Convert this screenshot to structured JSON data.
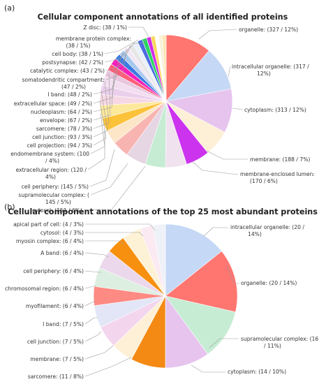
{
  "chart_data": [
    {
      "type": "pie",
      "panel_label": "(a)",
      "title": "Cellular component annotations of all identified proteins",
      "slices": [
        {
          "label": "organelle",
          "value": 327,
          "percent": 12,
          "color": "#ff7570"
        },
        {
          "label": "intracellular organelle",
          "value": 317,
          "percent": 12,
          "color": "#c5d8f5"
        },
        {
          "label": "cytoplasm",
          "value": 313,
          "percent": 12,
          "color": "#e6c4ee"
        },
        {
          "label": "membrane",
          "value": 188,
          "percent": 7,
          "color": "#fdf0d6"
        },
        {
          "label": "membrane-enclosed lumen",
          "value": 170,
          "percent": 6,
          "color": "#cc33ee"
        },
        {
          "label": "cytosol",
          "value": 151,
          "percent": 6,
          "color": "#f1e2ef"
        },
        {
          "label": "supramolecular complex",
          "value": 145,
          "percent": 5,
          "color": "#c6ecd3"
        },
        {
          "label": "cell periphery",
          "value": 145,
          "percent": 5,
          "color": "#e6d6e4"
        },
        {
          "label": "extracellular region",
          "value": 120,
          "percent": 4,
          "color": "#f8b4b1"
        },
        {
          "label": "endomembrane system",
          "value": 100,
          "percent": 4,
          "color": "#fde6c8"
        },
        {
          "label": "cell projection",
          "value": 94,
          "percent": 3,
          "color": "#fcc23a"
        },
        {
          "label": "cell junction",
          "value": 93,
          "percent": 3,
          "color": "#fde99c"
        },
        {
          "label": "sarcomere",
          "value": 78,
          "percent": 3,
          "color": "#f6d8e4"
        },
        {
          "label": "envelope",
          "value": 67,
          "percent": 2,
          "color": "#ebd0ec"
        },
        {
          "label": "nucleoplasm",
          "value": 64,
          "percent": 2,
          "color": "#f3ddf0"
        },
        {
          "label": "extracellular space",
          "value": 49,
          "percent": 2,
          "color": "#e8c6de"
        },
        {
          "label": "I band",
          "value": 48,
          "percent": 2,
          "color": "#ff5d7a"
        },
        {
          "label": "somatodendritic compartment",
          "value": 47,
          "percent": 2,
          "color": "#f31fba"
        },
        {
          "label": "catalytic complex",
          "value": 43,
          "percent": 2,
          "color": "#3d7ae0"
        },
        {
          "label": "postsynapse",
          "value": 42,
          "percent": 2,
          "color": "#a7c8ee"
        },
        {
          "label": "cell body",
          "value": 38,
          "percent": 1,
          "color": "#f2e6f4"
        },
        {
          "label": "membrane protein complex",
          "value": 38,
          "percent": 1,
          "color": "#e6e6e6"
        },
        {
          "label": "Z disc",
          "value": 38,
          "percent": 1,
          "color": "#e8f0fb"
        },
        {
          "label": "",
          "value": 35,
          "percent": null,
          "color": "#4d6be0"
        },
        {
          "label": "",
          "value": 33,
          "percent": null,
          "color": "#28d65f"
        },
        {
          "label": "",
          "value": 31,
          "percent": null,
          "color": "#d12be8"
        },
        {
          "label": "",
          "value": 29,
          "percent": null,
          "color": "#fbd85b"
        },
        {
          "label": "",
          "value": 27,
          "percent": null,
          "color": "#ffffff"
        },
        {
          "label": "",
          "value": 27,
          "percent": null,
          "color": "#f9f2d9"
        },
        {
          "label": "",
          "value": 26,
          "percent": null,
          "color": "#fde4b4"
        }
      ],
      "labels": [
        {
          "text": "organelle: (327 / 12%)"
        },
        {
          "text": "intracellular organelle: (317 / 12%)"
        },
        {
          "text": "cytoplasm: (313 / 12%)"
        },
        {
          "text": "membrane: (188 / 7%)"
        },
        {
          "text": "membrane-enclosed lumen: (170 / 6%)"
        },
        {
          "text": "Z disc: (38 / 1%)"
        },
        {
          "text": "membrane protein complex: (38 / 1%)"
        },
        {
          "text": "cell body: (38 / 1%)"
        },
        {
          "text": "postsynapse: (42 / 2%)"
        },
        {
          "text": "catalytic complex: (43 / 2%)"
        },
        {
          "text": "somatodendritic compartment: (47 / 2%)"
        },
        {
          "text": "I band: (48 / 2%)"
        },
        {
          "text": "extracellular space: (49 / 2%)"
        },
        {
          "text": "nucleoplasm: (64 / 2%)"
        },
        {
          "text": "envelope: (67 / 2%)"
        },
        {
          "text": "sarcomere: (78 / 3%)"
        },
        {
          "text": "cell junction: (93 / 3%)"
        },
        {
          "text": "cell projection: (94 / 3%)"
        },
        {
          "text": "endomembrane system: (100 / 4%)"
        },
        {
          "text": "extracellular region: (120 / 4%)"
        },
        {
          "text": "cell periphery: (145 / 5%)"
        },
        {
          "text": "supramolecular complex: (145 / 5%)"
        },
        {
          "text": "cytosol: (151 / 6%)"
        }
      ]
    },
    {
      "type": "pie",
      "panel_label": "(b)",
      "title": "Cellular component annotations of the top 25 most abundant proteins",
      "slices": [
        {
          "label": "intracellular organelle",
          "value": 20,
          "percent": 14,
          "color": "#c5d8f5"
        },
        {
          "label": "organelle",
          "value": 20,
          "percent": 14,
          "color": "#ff7570"
        },
        {
          "label": "supramolecular complex",
          "value": 16,
          "percent": 11,
          "color": "#c6ecd3"
        },
        {
          "label": "cytoplasm",
          "value": 14,
          "percent": 10,
          "color": "#e6c4ee"
        },
        {
          "label": "sarcomere",
          "value": 11,
          "percent": 8,
          "color": "#f48a14"
        },
        {
          "label": "membrane",
          "value": 7,
          "percent": 5,
          "color": "#fdf0d6"
        },
        {
          "label": "cell junction",
          "value": 7,
          "percent": 5,
          "color": "#f3d6ee"
        },
        {
          "label": "I band",
          "value": 7,
          "percent": 5,
          "color": "#e2e6f7"
        },
        {
          "label": "myofilament",
          "value": 6,
          "percent": 4,
          "color": "#fe8a84"
        },
        {
          "label": "chromosomal region",
          "value": 6,
          "percent": 4,
          "color": "#dcefe0"
        },
        {
          "label": "cell periphery",
          "value": 6,
          "percent": 4,
          "color": "#ecd8ec"
        },
        {
          "label": "A band",
          "value": 6,
          "percent": 4,
          "color": "#f7900f"
        },
        {
          "label": "myosin complex",
          "value": 6,
          "percent": 4,
          "color": "#fdf2d6"
        },
        {
          "label": "cytosol",
          "value": 4,
          "percent": 3,
          "color": "#fbeaf2"
        },
        {
          "label": "apical part of cell",
          "value": 4,
          "percent": 3,
          "color": "#eef1f8"
        }
      ],
      "labels": [
        {
          "text": "intracellular organelle: (20 / 14%)"
        },
        {
          "text": "organelle: (20 / 14%)"
        },
        {
          "text": "supramolecular complex: (16 / 11%)"
        },
        {
          "text": "cytoplasm: (14 / 10%)"
        },
        {
          "text": "sarcomere: (11 / 8%)"
        },
        {
          "text": "membrane: (7 / 5%)"
        },
        {
          "text": "cell junction: (7 / 5%)"
        },
        {
          "text": "I band: (7 / 5%)"
        },
        {
          "text": "myofilament: (6 / 4%)"
        },
        {
          "text": "chromosomal region: (6 / 4%)"
        },
        {
          "text": "cell periphery: (6 / 4%)"
        },
        {
          "text": "A band: (6 / 4%)"
        },
        {
          "text": "myosin complex: (6 / 4%)"
        },
        {
          "text": "cytosol: (4 / 3%)"
        },
        {
          "text": "apical part of cell: (4 / 3%)"
        }
      ]
    }
  ]
}
